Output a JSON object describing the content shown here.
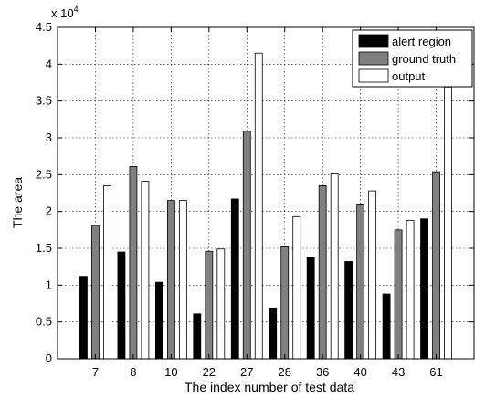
{
  "chart_data": {
    "type": "bar",
    "title": "",
    "xlabel": "The index number of test data",
    "ylabel": "The area",
    "y_multiplier_label": "x 10",
    "y_multiplier_exponent": "4",
    "ylim": [
      0,
      4.5
    ],
    "yticks": [
      "0",
      "0.5",
      "1",
      "1.5",
      "2",
      "2.5",
      "3",
      "3.5",
      "4",
      "4.5"
    ],
    "grid": true,
    "legend_position": "top-right",
    "categories": [
      "7",
      "8",
      "10",
      "22",
      "27",
      "28",
      "36",
      "40",
      "43",
      "61"
    ],
    "series": [
      {
        "name": "alert region",
        "color": "#000000",
        "values": [
          1.12,
          1.45,
          1.04,
          0.61,
          2.17,
          0.69,
          1.38,
          1.32,
          0.88,
          1.9
        ]
      },
      {
        "name": "ground truth",
        "color": "#808080",
        "values": [
          1.81,
          2.61,
          2.15,
          1.46,
          3.09,
          1.52,
          2.35,
          2.09,
          1.75,
          2.54
        ]
      },
      {
        "name": "output",
        "color": "#ffffff",
        "values": [
          2.35,
          2.41,
          2.15,
          1.49,
          4.15,
          1.93,
          2.51,
          2.28,
          1.88,
          3.69
        ]
      }
    ]
  }
}
